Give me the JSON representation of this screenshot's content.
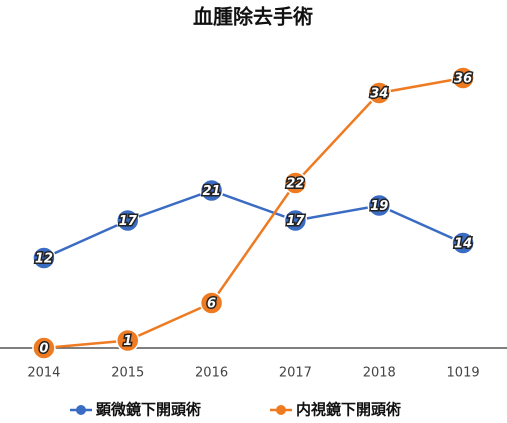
{
  "chart_data": {
    "type": "line",
    "title": "血腫除去手術",
    "categories": [
      "2014",
      "2015",
      "2016",
      "2017",
      "2018",
      "1019"
    ],
    "series": [
      {
        "name": "顕微鏡下開頭術",
        "color": "#3b6cc4",
        "values": [
          12,
          17,
          21,
          17,
          19,
          14
        ]
      },
      {
        "name": "内視鏡下開頭術",
        "color": "#ee7b22",
        "values": [
          0,
          1,
          6,
          22,
          34,
          36
        ]
      }
    ],
    "ylim": [
      0,
      40
    ],
    "legend": "bottom",
    "data_labels": true
  }
}
